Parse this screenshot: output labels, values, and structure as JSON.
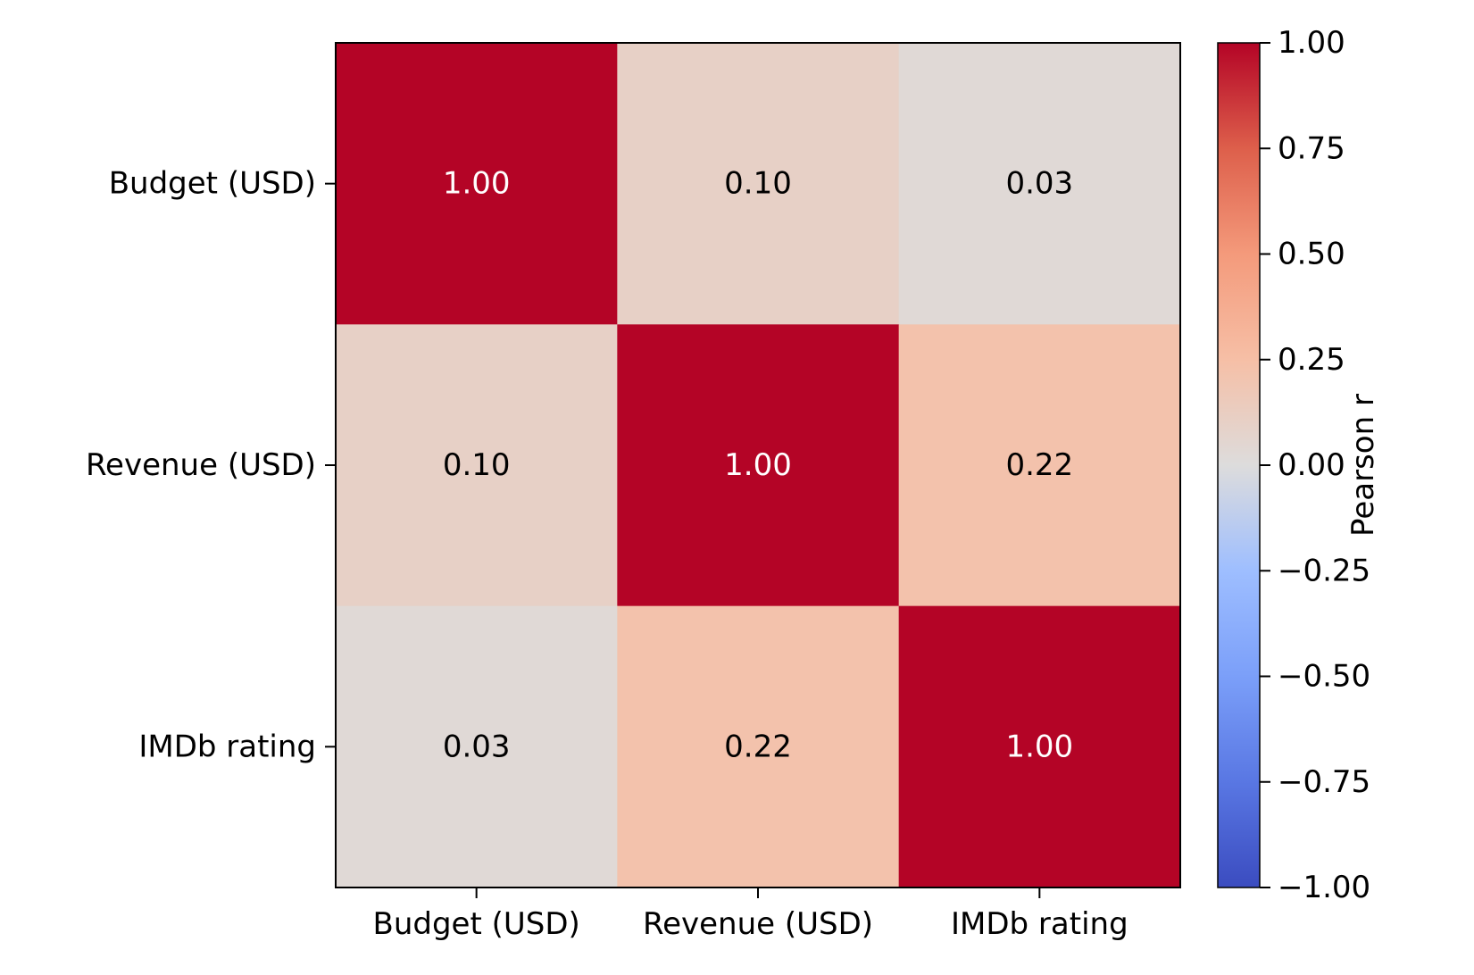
{
  "chart_data": {
    "type": "heatmap",
    "rows": [
      "Budget (USD)",
      "Revenue (USD)",
      "IMDb rating"
    ],
    "columns": [
      "Budget (USD)",
      "Revenue (USD)",
      "IMDb rating"
    ],
    "values": [
      [
        1.0,
        0.1,
        0.03
      ],
      [
        0.1,
        1.0,
        0.22
      ],
      [
        0.03,
        0.22,
        1.0
      ]
    ],
    "cell_labels": [
      [
        "1.00",
        "0.10",
        "0.03"
      ],
      [
        "0.10",
        "1.00",
        "0.22"
      ],
      [
        "0.03",
        "0.22",
        "1.00"
      ]
    ],
    "colormap": "coolwarm",
    "vmin": -1.0,
    "vmax": 1.0,
    "colorbar": {
      "label": "Pearson r",
      "ticks": [
        1.0,
        0.75,
        0.5,
        0.25,
        0.0,
        -0.25,
        -0.5,
        -0.75,
        -1.0
      ],
      "tick_labels": [
        "1.00",
        "0.75",
        "0.50",
        "0.25",
        "0.00",
        "−0.25",
        "−0.50",
        "−0.75",
        "−1.00"
      ]
    },
    "title": "",
    "xlabel": "",
    "ylabel": ""
  },
  "colors": {
    "high": "#b40426",
    "mid": "#dddcdc",
    "low": "#3b4cc0",
    "dark_text": "#000000",
    "light_text": "#ffffff"
  }
}
